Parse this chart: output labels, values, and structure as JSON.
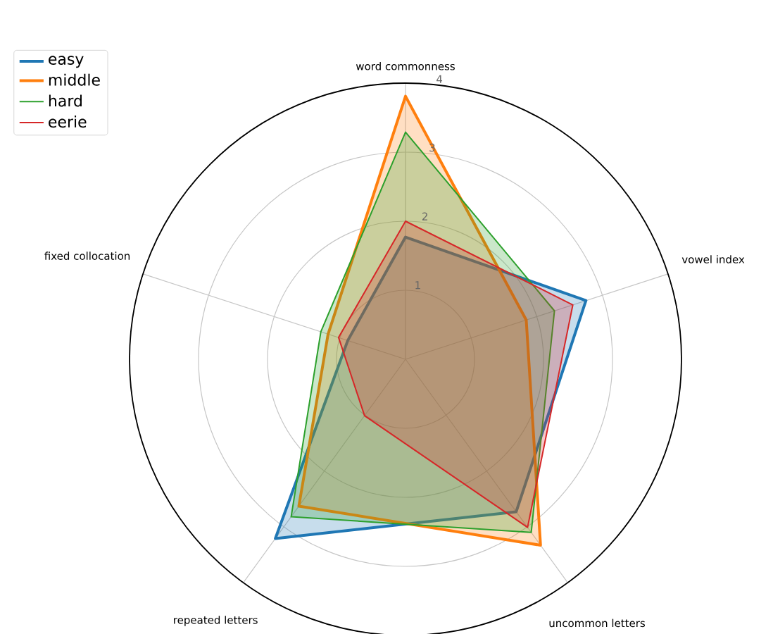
{
  "chart_data": {
    "type": "radar",
    "categories": [
      "word commonness",
      "vowel index",
      "uncommon letters",
      "repeated letters",
      "fixed collocation"
    ],
    "ylim": [
      0,
      4
    ],
    "yticks": [
      1,
      2,
      3,
      4
    ],
    "grid": true,
    "legend": "top left",
    "series": [
      {
        "name": "easy",
        "color": "#1f77b4",
        "values": [
          1.77,
          2.75,
          2.73,
          3.21,
          0.88
        ]
      },
      {
        "name": "middle",
        "color": "#ff7f0e",
        "values": [
          3.81,
          1.84,
          3.33,
          2.63,
          1.18
        ]
      },
      {
        "name": "hard",
        "color": "#2ca02c",
        "values": [
          3.29,
          2.27,
          3.1,
          2.82,
          1.29
        ]
      },
      {
        "name": "eerie",
        "color": "#d62728",
        "values": [
          2.0,
          2.55,
          3.01,
          1.01,
          1.02
        ]
      }
    ]
  }
}
